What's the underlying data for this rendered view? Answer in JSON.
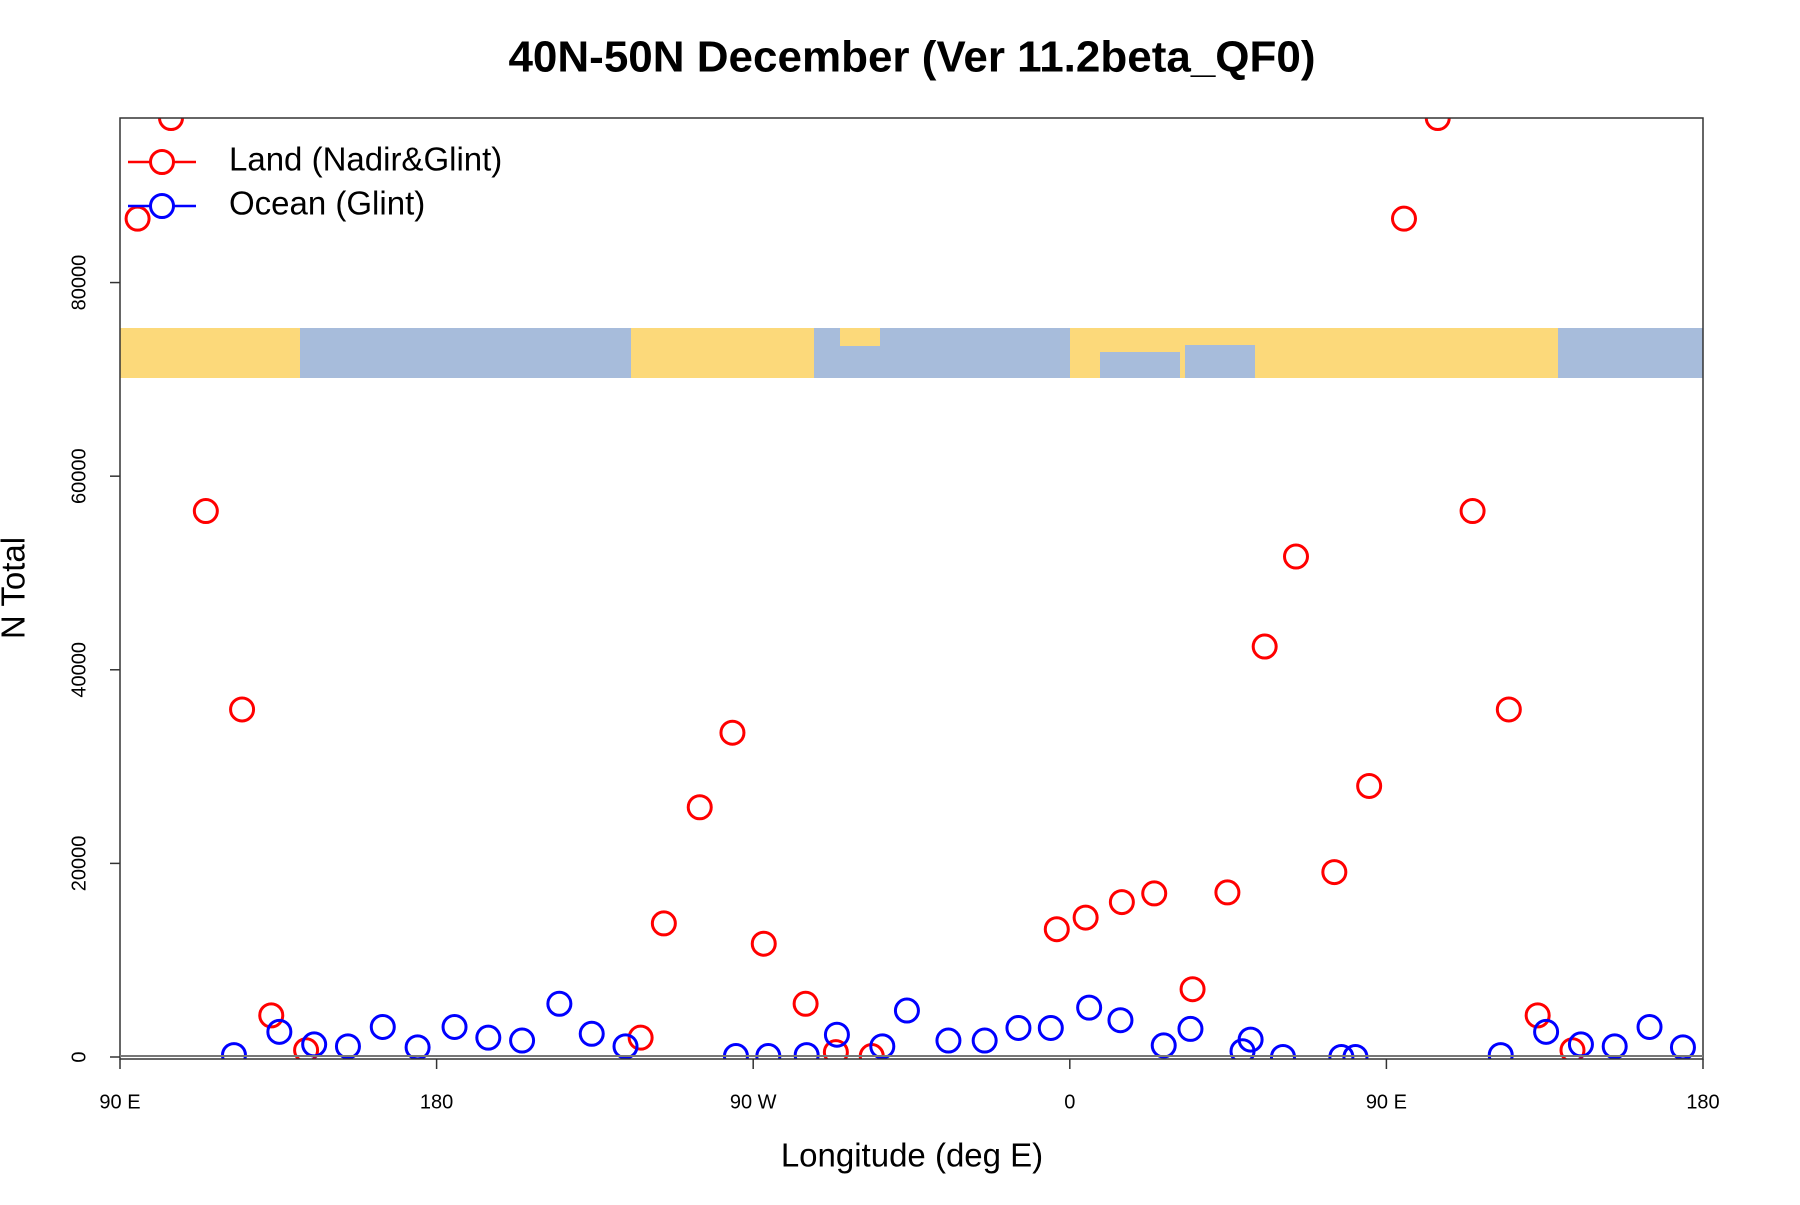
{
  "chart_data": {
    "type": "scatter",
    "title": "40N-50N December (Ver 11.2beta_QF0)",
    "x_label": "Longitude (deg E)",
    "y_label": "N Total",
    "xlim": [
      90,
      540
    ],
    "ylim": [
      0,
      97000
    ],
    "xticks": [
      {
        "value": 90,
        "label": "90 E"
      },
      180,
      {
        "value": 270,
        "label": "90 W"
      },
      {
        "value": 360,
        "label": "0"
      },
      {
        "value": 450,
        "label": "90 E"
      },
      {
        "value": 540,
        "label": "180"
      }
    ],
    "yticks": [
      0,
      20000,
      40000,
      60000,
      80000
    ],
    "legend_position": "topleft",
    "series": [
      {
        "name": "Land (Nadir&Glint)",
        "color": "#ff0000",
        "x": [
          95.0,
          104.5,
          114.4,
          124.7,
          133.0,
          142.9,
          238.0,
          244.6,
          254.8,
          264.1,
          273.0,
          284.9,
          293.5,
          303.7,
          356.3,
          364.5,
          374.8,
          384.0,
          394.9,
          404.8,
          415.4,
          424.3,
          435.2,
          445.1,
          455.0,
          464.6,
          474.5,
          484.8,
          493.0,
          502.9
        ],
        "values": [
          86600,
          97000,
          56400,
          35900,
          4300,
          700,
          2000,
          13800,
          25800,
          33500,
          11700,
          5500,
          500,
          100,
          13200,
          14400,
          16000,
          16900,
          7000,
          17000,
          42400,
          51700,
          19100,
          28000,
          86600,
          97000,
          56400,
          35900,
          4300,
          700
        ]
      },
      {
        "name": "Ocean (Glint)",
        "color": "#0000ff",
        "x": [
          122.4,
          135.3,
          145.2,
          154.8,
          164.7,
          174.6,
          185.1,
          194.7,
          204.3,
          214.9,
          224.1,
          233.7,
          265.1,
          274.3,
          285.2,
          293.8,
          306.7,
          313.7,
          325.5,
          335.8,
          345.4,
          354.6,
          365.5,
          374.4,
          386.7,
          394.3,
          409.1,
          411.4,
          420.6,
          437.2,
          441.2,
          482.5,
          495.4,
          505.3,
          514.9,
          524.8,
          534.3
        ],
        "values": [
          200,
          2600,
          1300,
          1100,
          3100,
          1000,
          3100,
          2000,
          1700,
          5500,
          2400,
          1100,
          100,
          100,
          200,
          2300,
          1100,
          4800,
          1700,
          1700,
          3000,
          3000,
          5100,
          3800,
          1200,
          2900,
          600,
          1800,
          0,
          0,
          0,
          200,
          2600,
          1300,
          1100,
          3100,
          1000
        ]
      }
    ]
  }
}
